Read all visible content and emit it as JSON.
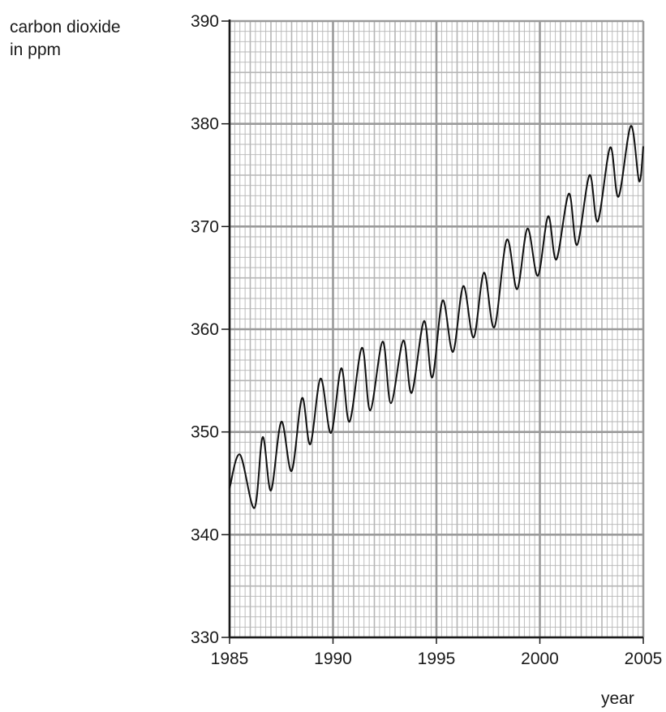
{
  "chart_data": {
    "type": "line",
    "title": "",
    "ylabel_lines": [
      "carbon dioxide",
      "in ppm"
    ],
    "xlabel": "year",
    "xlim": [
      1985,
      2005
    ],
    "ylim": [
      330,
      390
    ],
    "x_ticks": [
      "1985",
      "1990",
      "1995",
      "2000",
      "2005"
    ],
    "y_ticks": [
      "330",
      "340",
      "350",
      "360",
      "370",
      "380",
      "390"
    ],
    "grid": true,
    "series": [
      {
        "values_note": "",
        "x": [
          1985.0,
          1985.5,
          1986.2,
          1986.6,
          1987.0,
          1987.5,
          1988.0,
          1988.5,
          1988.9,
          1989.4,
          1989.9,
          1990.4,
          1990.8,
          1991.4,
          1991.8,
          1992.4,
          1992.8,
          1993.4,
          1993.8,
          1994.4,
          1994.8,
          1995.3,
          1995.8,
          1996.3,
          1996.8,
          1997.3,
          1997.8,
          1998.4,
          1998.9,
          1999.4,
          1999.9,
          2000.4,
          2000.8,
          2001.4,
          2001.8,
          2002.4,
          2002.8,
          2003.4,
          2003.8,
          2004.4,
          2004.8,
          2005.0
        ],
        "y": [
          344.5,
          347.8,
          342.6,
          349.5,
          344.3,
          351.0,
          346.2,
          353.3,
          348.8,
          355.2,
          349.9,
          356.2,
          351.0,
          358.2,
          352.1,
          358.8,
          352.8,
          358.9,
          353.8,
          360.8,
          355.3,
          362.8,
          357.8,
          364.2,
          359.2,
          365.5,
          360.2,
          368.7,
          363.9,
          369.8,
          365.2,
          371.0,
          366.8,
          373.2,
          368.2,
          375.0,
          370.5,
          377.7,
          372.9,
          379.8,
          374.4,
          377.8
        ]
      }
    ]
  }
}
